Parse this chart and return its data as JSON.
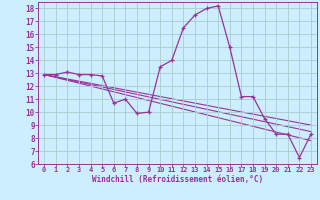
{
  "xlabel": "Windchill (Refroidissement éolien,°C)",
  "bg_color": "#cceeff",
  "grid_color": "#aacccc",
  "line_color": "#993399",
  "xlim": [
    -0.5,
    23.5
  ],
  "ylim": [
    6,
    18.5
  ],
  "xticks": [
    0,
    1,
    2,
    3,
    4,
    5,
    6,
    7,
    8,
    9,
    10,
    11,
    12,
    13,
    14,
    15,
    16,
    17,
    18,
    19,
    20,
    21,
    22,
    23
  ],
  "yticks": [
    6,
    7,
    8,
    9,
    10,
    11,
    12,
    13,
    14,
    15,
    16,
    17,
    18
  ],
  "series1_x": [
    0,
    1,
    2,
    3,
    4,
    5,
    6,
    7,
    8,
    9,
    10,
    11,
    12,
    13,
    14,
    15,
    16,
    17,
    18,
    19,
    20,
    21,
    22,
    23
  ],
  "series1_y": [
    12.9,
    12.9,
    13.1,
    12.9,
    12.9,
    12.8,
    10.7,
    11.0,
    9.9,
    10.0,
    13.5,
    14.0,
    16.5,
    17.5,
    18.0,
    18.2,
    15.0,
    11.2,
    11.2,
    9.5,
    8.3,
    8.3,
    6.5,
    8.3
  ],
  "series2_x": [
    0,
    23
  ],
  "series2_y": [
    12.9,
    8.5
  ],
  "series3_x": [
    0,
    23
  ],
  "series3_y": [
    12.9,
    7.8
  ],
  "series4_x": [
    0,
    23
  ],
  "series4_y": [
    12.9,
    9.0
  ]
}
